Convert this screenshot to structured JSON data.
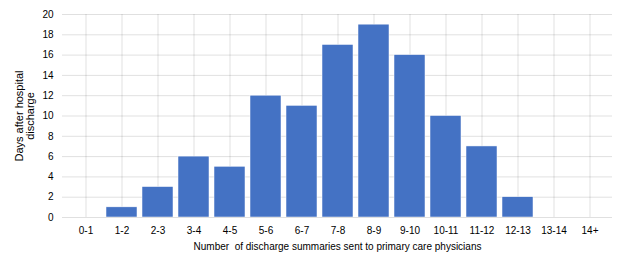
{
  "chart_data": {
    "type": "bar",
    "categories": [
      "0-1",
      "1-2",
      "2-3",
      "3-4",
      "4-5",
      "5-6",
      "6-7",
      "7-8",
      "8-9",
      "9-10",
      "10-11",
      "11-12",
      "12-13",
      "13-14",
      "14+"
    ],
    "values": [
      0,
      1,
      3,
      6,
      5,
      12,
      11,
      17,
      19,
      16,
      10,
      7,
      2,
      0,
      0
    ],
    "color": "#4472C4",
    "xlabel": "Number  of discharge summaries sent to primary care physicians",
    "ylabel": "Days after hospital\ndischarge",
    "ylim": [
      0,
      20
    ],
    "yticks": [
      0,
      2,
      4,
      6,
      8,
      10,
      12,
      14,
      16,
      18,
      20
    ],
    "grid": true
  }
}
